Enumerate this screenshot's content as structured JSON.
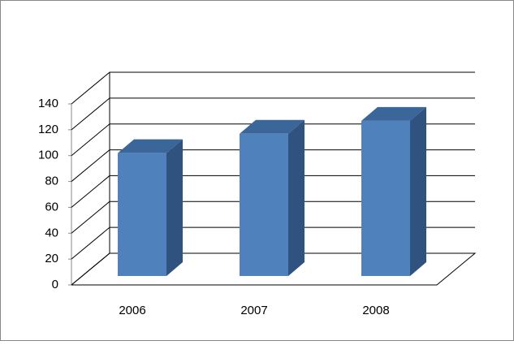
{
  "chart_data": {
    "type": "bar3d",
    "categories": [
      "2006",
      "2007",
      "2008"
    ],
    "values": [
      95,
      110,
      120
    ],
    "color": "#4f81bd",
    "ylim": [
      0,
      140
    ],
    "yticks": [
      0,
      20,
      40,
      60,
      80,
      100,
      120,
      140
    ],
    "grid": true
  }
}
